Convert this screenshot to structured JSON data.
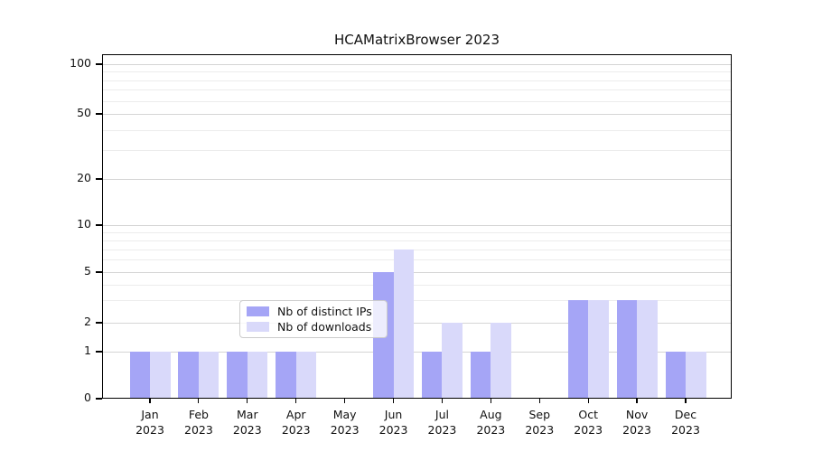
{
  "chart_data": {
    "type": "bar",
    "title": "HCAMatrixBrowser 2023",
    "categories": [
      "Jan",
      "Feb",
      "Mar",
      "Apr",
      "May",
      "Jun",
      "Jul",
      "Aug",
      "Sep",
      "Oct",
      "Nov",
      "Dec"
    ],
    "year_label": "2023",
    "series": [
      {
        "name": "Nb of distinct IPs",
        "color": "#a5a5f6",
        "values": [
          1,
          1,
          1,
          1,
          0,
          5,
          1,
          1,
          0,
          3,
          3,
          1
        ]
      },
      {
        "name": "Nb of downloads",
        "color": "#d9d9fa",
        "values": [
          1,
          1,
          1,
          1,
          0,
          7,
          2,
          2,
          0,
          3,
          3,
          1
        ]
      }
    ],
    "xlabel": "",
    "ylabel": "",
    "yticks": [
      0,
      1,
      2,
      5,
      10,
      20,
      50,
      100
    ],
    "minor_gridlines": [
      3,
      4,
      6,
      7,
      8,
      9,
      30,
      40,
      60,
      70,
      80,
      90
    ],
    "ylim": [
      0,
      115
    ],
    "scale": "symlog",
    "grid": true,
    "legend": {
      "entries": [
        "Nb of distinct IPs",
        "Nb of downloads"
      ],
      "position": "lower center-left inside plot"
    }
  },
  "colors": {
    "background": "#ffffff",
    "axis": "#000000",
    "grid_major": "#d5d5d5",
    "grid_minor": "#ececec",
    "text": "#111111",
    "bar_distinct_ips": "#a5a5f6",
    "bar_downloads": "#d9d9fa",
    "legend_border": "#cccccc",
    "legend_background": "rgba(255,255,255,0.8)"
  }
}
